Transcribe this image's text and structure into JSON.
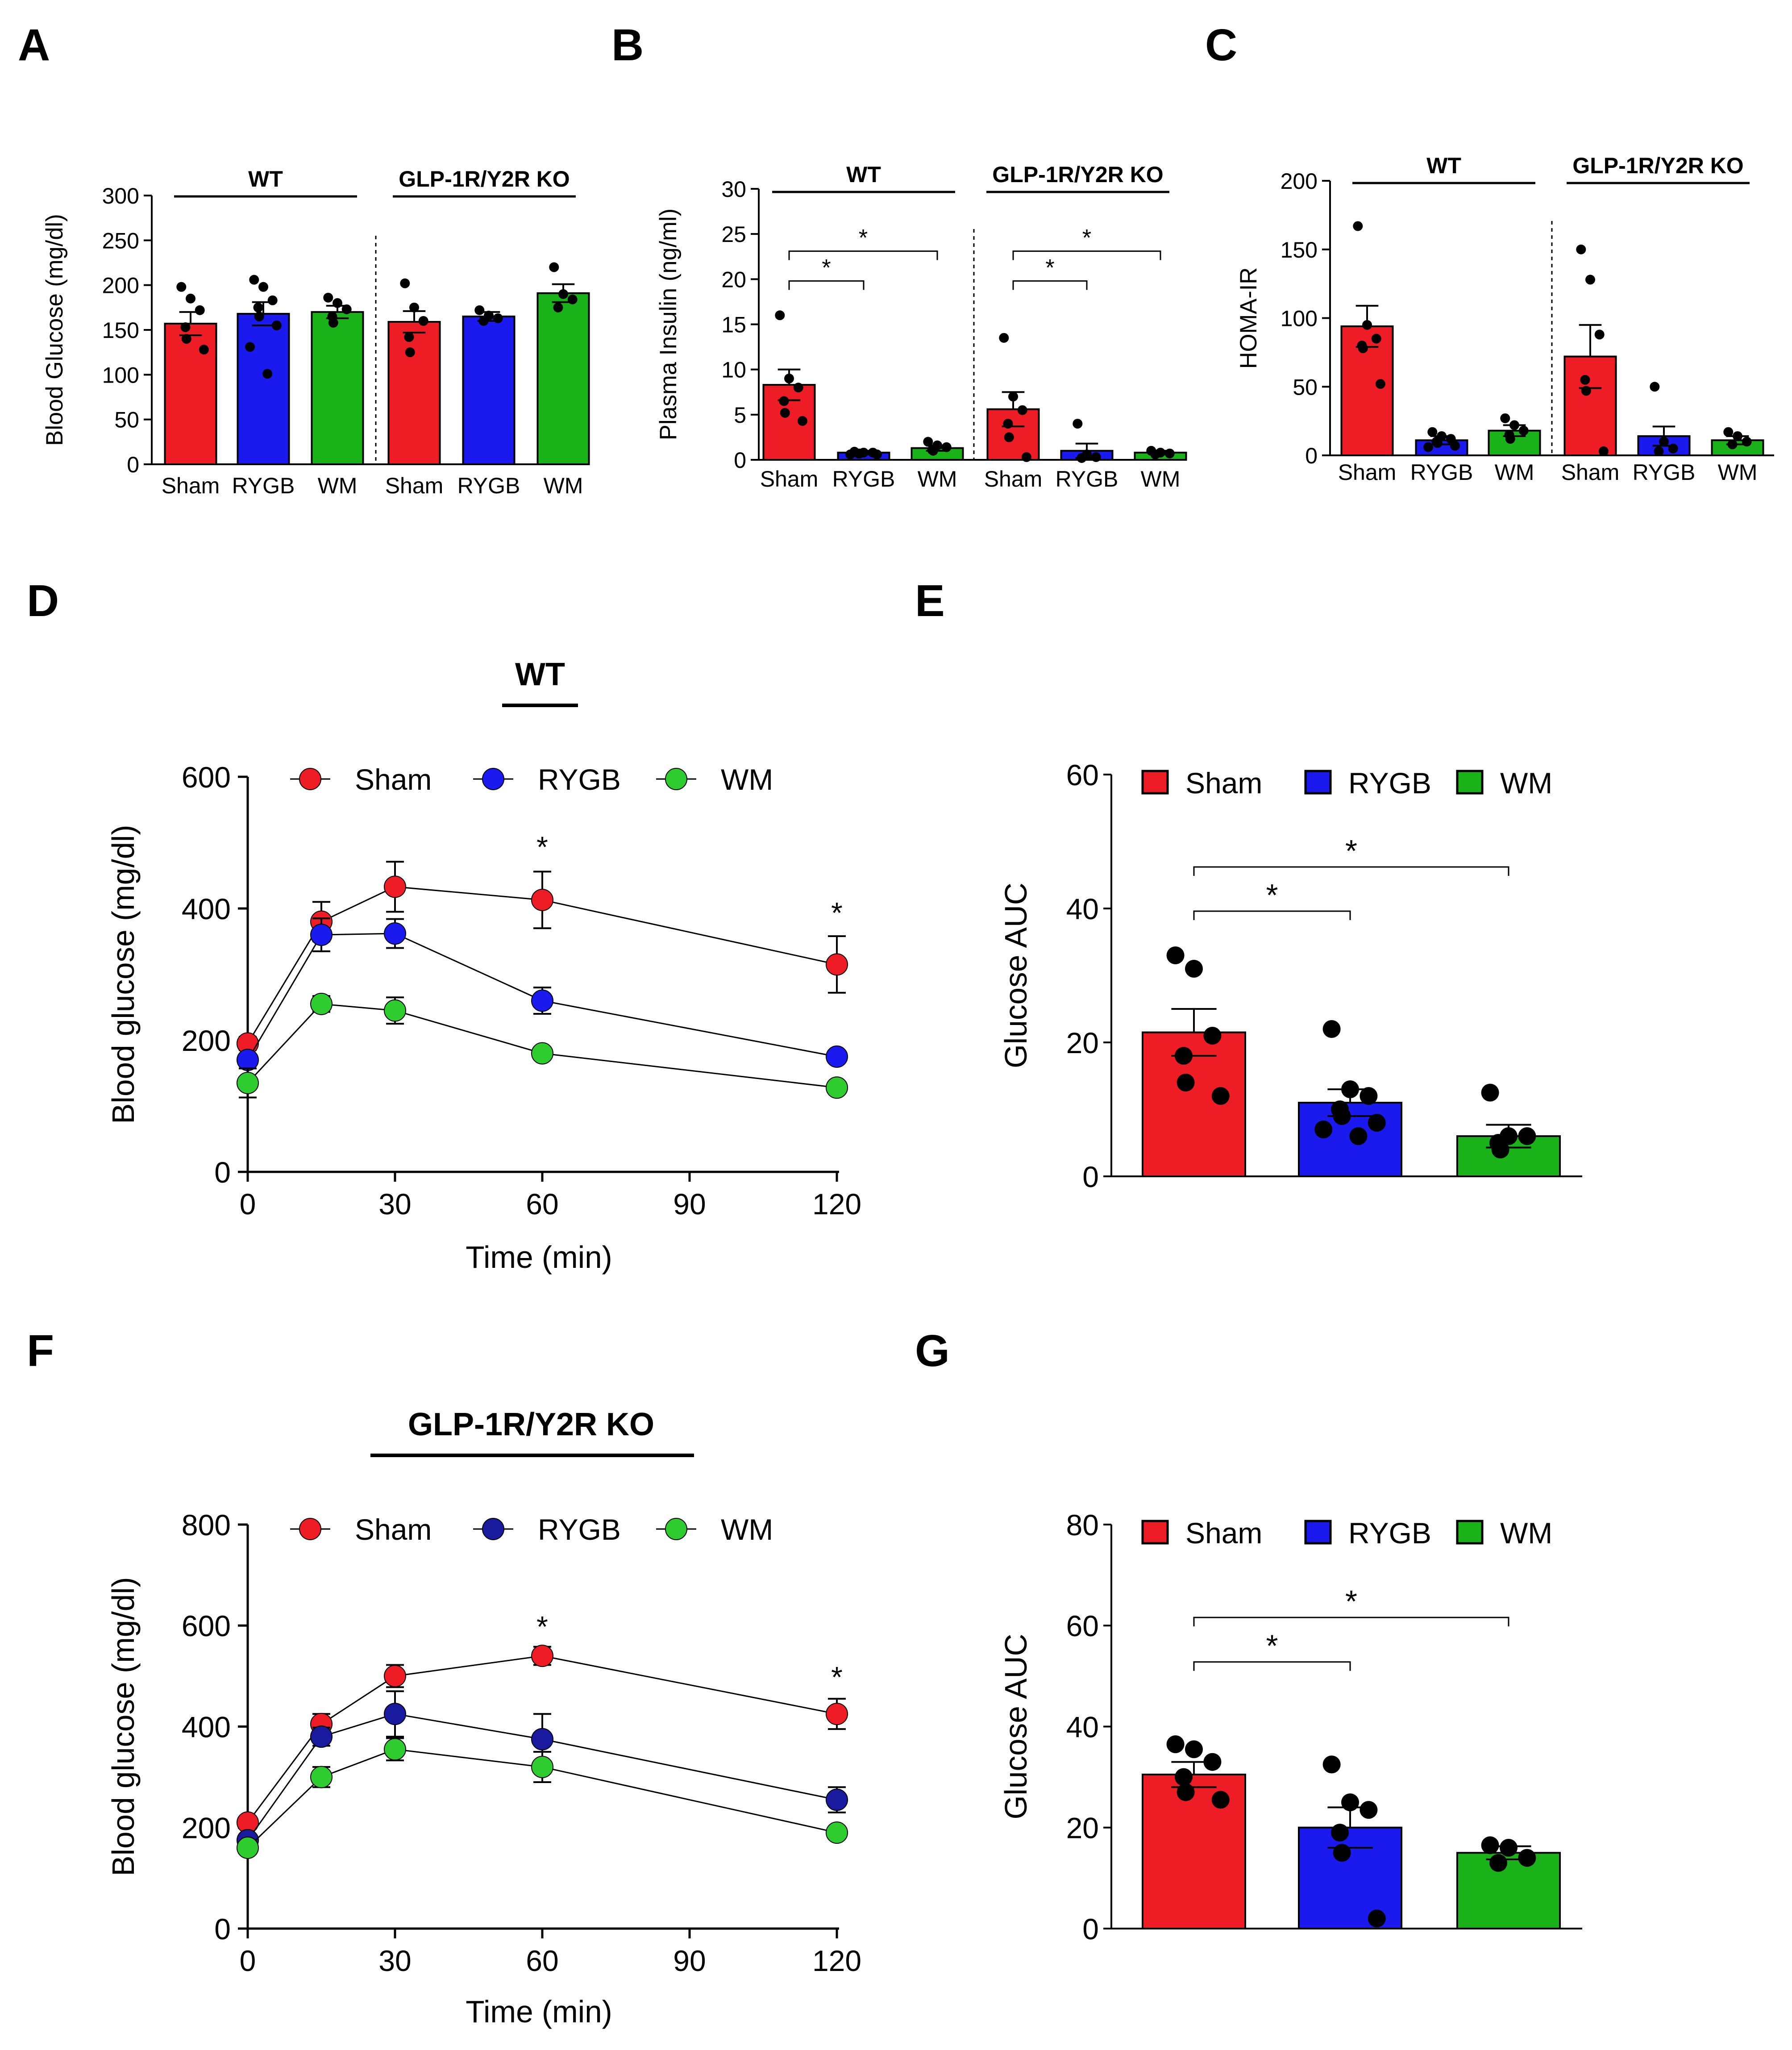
{
  "chart_data": [
    {
      "id": "A",
      "panel_label": "A",
      "type": "bar",
      "ylabel": "Blood  Glucose (mg/dl)",
      "ylim": [
        0,
        300
      ],
      "yticks": [
        0,
        50,
        100,
        150,
        200,
        250,
        300
      ],
      "group_labels": [
        "WT",
        "GLP-1R/Y2R KO"
      ],
      "categories": [
        "Sham",
        "RYGB",
        "WM",
        "Sham",
        "RYGB",
        "WM"
      ],
      "values": [
        157,
        168,
        170,
        159,
        165,
        191
      ],
      "errors": [
        13,
        13,
        7,
        12,
        5,
        10
      ],
      "points": [
        [
          198,
          185,
          172,
          153,
          140,
          128
        ],
        [
          206,
          198,
          183,
          175,
          165,
          155,
          131,
          101
        ],
        [
          186,
          180,
          173,
          165,
          158
        ],
        [
          202,
          175,
          160,
          142,
          125
        ],
        [
          172,
          166,
          163,
          160
        ],
        [
          220,
          190,
          184,
          175
        ]
      ],
      "comparisons": []
    },
    {
      "id": "B",
      "panel_label": "B",
      "type": "bar",
      "ylabel": "Plasma Insulin (ng/ml)",
      "ylim": [
        0,
        30
      ],
      "yticks": [
        0,
        5,
        10,
        15,
        20,
        25,
        30
      ],
      "group_labels": [
        "WT",
        "GLP-1R/Y2R KO"
      ],
      "categories": [
        "Sham",
        "RYGB",
        "WM",
        "Sham",
        "RYGB",
        "WM"
      ],
      "values": [
        8.3,
        0.8,
        1.3,
        5.6,
        1.0,
        0.8
      ],
      "errors": [
        1.7,
        0.2,
        0.3,
        1.9,
        0.8,
        0.2
      ],
      "points": [
        [
          16.0,
          9.0,
          8.0,
          6.5,
          5.2,
          4.3
        ],
        [
          0.9,
          0.8,
          0.8,
          0.7,
          0.7,
          0.6,
          0.6
        ],
        [
          2.0,
          1.6,
          1.4,
          1.1,
          1.0
        ],
        [
          13.5,
          7.0,
          5.5,
          4.0,
          2.5,
          0.3
        ],
        [
          4.0,
          0.6,
          0.3,
          0.2
        ],
        [
          1.0,
          0.8,
          0.7,
          0.6
        ]
      ],
      "comparisons": [
        {
          "from": 0,
          "to": 1,
          "label": "*",
          "level": 1
        },
        {
          "from": 0,
          "to": 2,
          "label": "*",
          "level": 2
        },
        {
          "from": 3,
          "to": 4,
          "label": "*",
          "level": 1
        },
        {
          "from": 3,
          "to": 5,
          "label": "*",
          "level": 2
        }
      ]
    },
    {
      "id": "C",
      "panel_label": "C",
      "type": "bar",
      "ylabel": "HOMA-IR",
      "ylim": [
        0,
        200
      ],
      "yticks": [
        0,
        50,
        100,
        150,
        200
      ],
      "group_labels": [
        "WT",
        "GLP-1R/Y2R KO"
      ],
      "categories": [
        "Sham",
        "RYGB",
        "WM",
        "Sham",
        "RYGB",
        "WM"
      ],
      "values": [
        94,
        11,
        18,
        72,
        14,
        11
      ],
      "errors": [
        15,
        3,
        4,
        23,
        7,
        3
      ],
      "points": [
        [
          167,
          95,
          85,
          80,
          78,
          52
        ],
        [
          17,
          14,
          12,
          10,
          9,
          7,
          6
        ],
        [
          27,
          22,
          18,
          15,
          12
        ],
        [
          150,
          128,
          88,
          55,
          47,
          3
        ],
        [
          50,
          10,
          5,
          3
        ],
        [
          17,
          14,
          10,
          8
        ]
      ],
      "comparisons": []
    },
    {
      "id": "D",
      "panel_label": "D",
      "type": "line",
      "title": "WT",
      "xlabel": "Time (min)",
      "ylabel": "Blood glucose (mg/dl)",
      "xlim": [
        0,
        120
      ],
      "xticks": [
        0,
        30,
        60,
        90,
        120
      ],
      "ylim": [
        0,
        600
      ],
      "yticks": [
        0,
        200,
        400,
        600
      ],
      "x": [
        0,
        15,
        30,
        60,
        120
      ],
      "series": [
        {
          "name": "Sham",
          "color": "#ee1c24",
          "values": [
            195,
            380,
            433,
            413,
            315
          ],
          "errors": [
            10,
            30,
            38,
            43,
            43
          ]
        },
        {
          "name": "RYGB",
          "color": "#1a1aef",
          "values": [
            170,
            360,
            362,
            260,
            175
          ],
          "errors": [
            8,
            25,
            22,
            20,
            8
          ]
        },
        {
          "name": "WM",
          "color": "#2ecc2e",
          "values": [
            135,
            255,
            245,
            180,
            128
          ],
          "errors": [
            22,
            12,
            20,
            8,
            6
          ]
        }
      ],
      "annotations": [
        {
          "x": 60,
          "y": 495,
          "text": "*"
        },
        {
          "x": 120,
          "y": 395,
          "text": "*"
        }
      ]
    },
    {
      "id": "E",
      "panel_label": "E",
      "type": "bar",
      "ylabel": "Glucose  AUC",
      "ylim": [
        0,
        60
      ],
      "yticks": [
        0,
        20,
        40,
        60
      ],
      "legend": [
        "Sham",
        "RYGB",
        "WM"
      ],
      "categories": [
        "Sham",
        "RYGB",
        "WM"
      ],
      "values": [
        21.5,
        11.0,
        6.0
      ],
      "errors": [
        3.5,
        2.0,
        1.7
      ],
      "points": [
        [
          33,
          31,
          21,
          18,
          14,
          12
        ],
        [
          22,
          13,
          12,
          10,
          9,
          8,
          7,
          6
        ],
        [
          12.5,
          6,
          6,
          5,
          4
        ]
      ],
      "comparisons": [
        {
          "from": 0,
          "to": 1,
          "label": "*",
          "level": 1
        },
        {
          "from": 0,
          "to": 2,
          "label": "*",
          "level": 2
        }
      ]
    },
    {
      "id": "F",
      "panel_label": "F",
      "type": "line",
      "title": "GLP-1R/Y2R KO",
      "xlabel": "Time (min)",
      "ylabel": "Blood glucose (mg/dl)",
      "xlim": [
        0,
        120
      ],
      "xticks": [
        0,
        30,
        60,
        90,
        120
      ],
      "ylim": [
        0,
        800
      ],
      "yticks": [
        0,
        200,
        400,
        600,
        800
      ],
      "x": [
        0,
        15,
        30,
        60,
        120
      ],
      "series": [
        {
          "name": "Sham",
          "color": "#ee1c24",
          "values": [
            210,
            405,
            500,
            540,
            425
          ],
          "errors": [
            10,
            20,
            22,
            18,
            30
          ]
        },
        {
          "name": "RYGB",
          "color": "#1a1a9e",
          "values": [
            175,
            380,
            425,
            375,
            255
          ],
          "errors": [
            10,
            18,
            45,
            50,
            25
          ]
        },
        {
          "name": "WM",
          "color": "#2ecc2e",
          "values": [
            160,
            300,
            355,
            320,
            190
          ],
          "errors": [
            10,
            20,
            22,
            30,
            10
          ]
        }
      ],
      "annotations": [
        {
          "x": 60,
          "y": 600,
          "text": "*"
        },
        {
          "x": 120,
          "y": 500,
          "text": "*"
        }
      ]
    },
    {
      "id": "G",
      "panel_label": "G",
      "type": "bar",
      "ylabel": "Glucose  AUC",
      "ylim": [
        0,
        80
      ],
      "yticks": [
        0,
        20,
        40,
        60,
        80
      ],
      "legend": [
        "Sham",
        "RYGB",
        "WM"
      ],
      "categories": [
        "Sham",
        "RYGB",
        "WM"
      ],
      "values": [
        30.5,
        20.0,
        15.0
      ],
      "errors": [
        2.5,
        4.0,
        1.3
      ],
      "points": [
        [
          36.5,
          35.5,
          33,
          30,
          27,
          25.5
        ],
        [
          32.5,
          25,
          23.5,
          19,
          15,
          2
        ],
        [
          16.5,
          16,
          14,
          13
        ]
      ],
      "comparisons": [
        {
          "from": 0,
          "to": 1,
          "label": "*",
          "level": 1
        },
        {
          "from": 0,
          "to": 2,
          "label": "*",
          "level": 2
        }
      ]
    }
  ]
}
